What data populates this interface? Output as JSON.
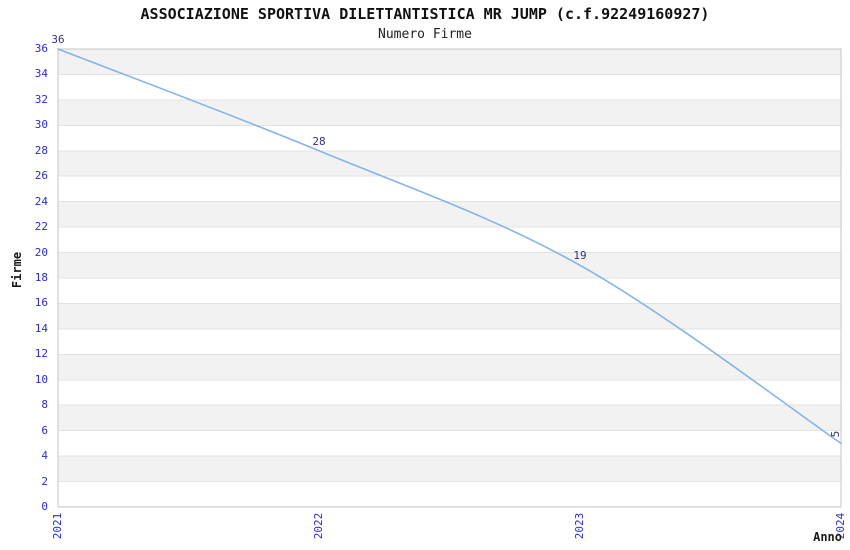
{
  "chart_data": {
    "type": "line",
    "title": "ASSOCIAZIONE SPORTIVA DILETTANTISTICA MR JUMP (c.f.92249160927)",
    "subtitle": "Numero Firme",
    "xlabel": "Anno",
    "ylabel": "Firme",
    "x": [
      "2021",
      "2022",
      "2023",
      "2024"
    ],
    "values": [
      36,
      28,
      19,
      5
    ],
    "ylim": [
      0,
      36
    ],
    "ytick_step": 2,
    "legend": "none",
    "grid": "horizontal gridlines every 2 units with alternating gray/white bands",
    "colors": {
      "line": "#85b4e8",
      "tick_labels": "#2b2bd0",
      "data_labels": "#333377",
      "band": "#f2f2f2",
      "gridline": "#e3e3e3",
      "plot_border": "#c6c6c6",
      "text": "#111111",
      "background": "#ffffff"
    }
  }
}
